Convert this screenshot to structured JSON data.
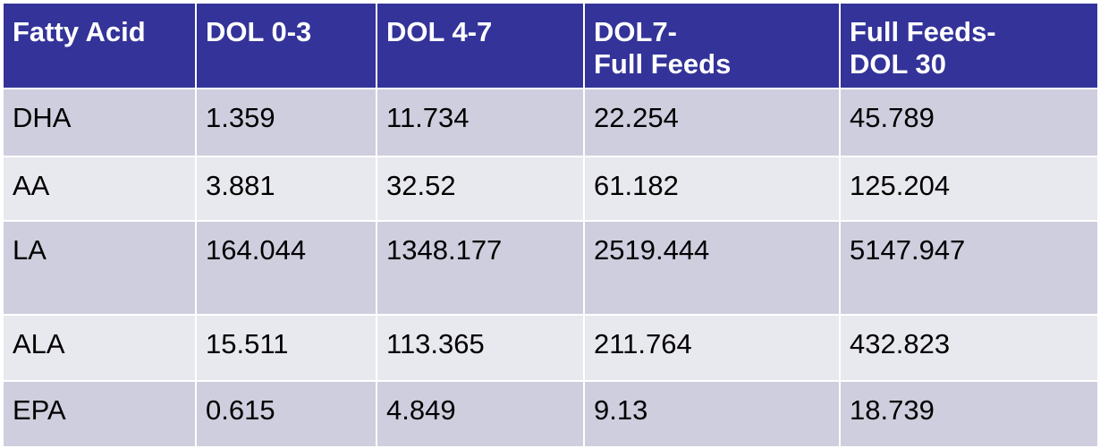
{
  "chart_data": {
    "type": "table",
    "columns": [
      "Fatty Acid",
      "DOL 0-3",
      "DOL 4-7",
      "DOL7-\nFull Feeds",
      "Full Feeds-\nDOL 30"
    ],
    "rows": [
      [
        "DHA",
        "1.359",
        "11.734",
        "22.254",
        "45.789"
      ],
      [
        "AA",
        "3.881",
        "32.52",
        "61.182",
        "125.204"
      ],
      [
        "LA",
        "164.044",
        "1348.177",
        "2519.444",
        "5147.947"
      ],
      [
        "ALA",
        "15.511",
        "113.365",
        "211.764",
        "432.823"
      ],
      [
        "EPA",
        "0.615",
        "4.849",
        "9.13",
        "18.739"
      ]
    ]
  },
  "colors": {
    "header_bg": "#333399",
    "header_text": "#ffffff",
    "row_dark": "#cfcede",
    "row_light": "#e8e8ef"
  }
}
